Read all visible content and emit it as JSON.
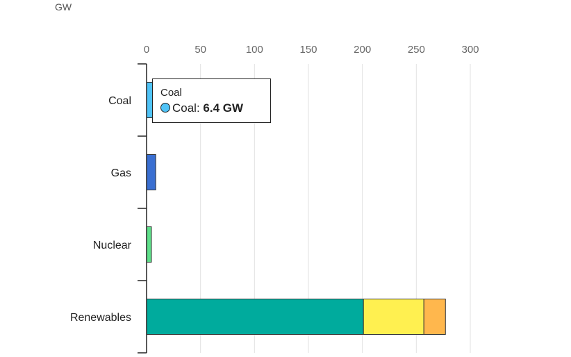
{
  "unit_label": "GW",
  "chart_data": {
    "type": "bar",
    "orientation": "horizontal",
    "stacked": true,
    "unit": "GW",
    "categories": [
      "Coal",
      "Gas",
      "Nuclear",
      "Renewables"
    ],
    "xlim": [
      0,
      300
    ],
    "xticks": [
      0,
      50,
      100,
      150,
      200,
      250,
      300
    ],
    "grid": true,
    "series": [
      {
        "values": [
          6.4,
          0,
          0,
          0
        ],
        "color": "#4fc3f7"
      },
      {
        "values": [
          0,
          8.5,
          0,
          0
        ],
        "color": "#3a6fd1"
      },
      {
        "values": [
          0,
          0,
          4.5,
          0
        ],
        "color": "#5ee08a"
      },
      {
        "values": [
          0,
          0,
          0,
          201
        ],
        "color": "#00ab9d"
      },
      {
        "values": [
          0,
          0,
          0,
          56
        ],
        "color": "#fff050"
      },
      {
        "values": [
          0,
          0,
          0,
          20
        ],
        "color": "#ffb74d"
      }
    ]
  },
  "tooltip": {
    "title": "Coal",
    "series_label": "Coal: ",
    "value": "6.4 GW",
    "dot_color": "#4fc3f7"
  }
}
